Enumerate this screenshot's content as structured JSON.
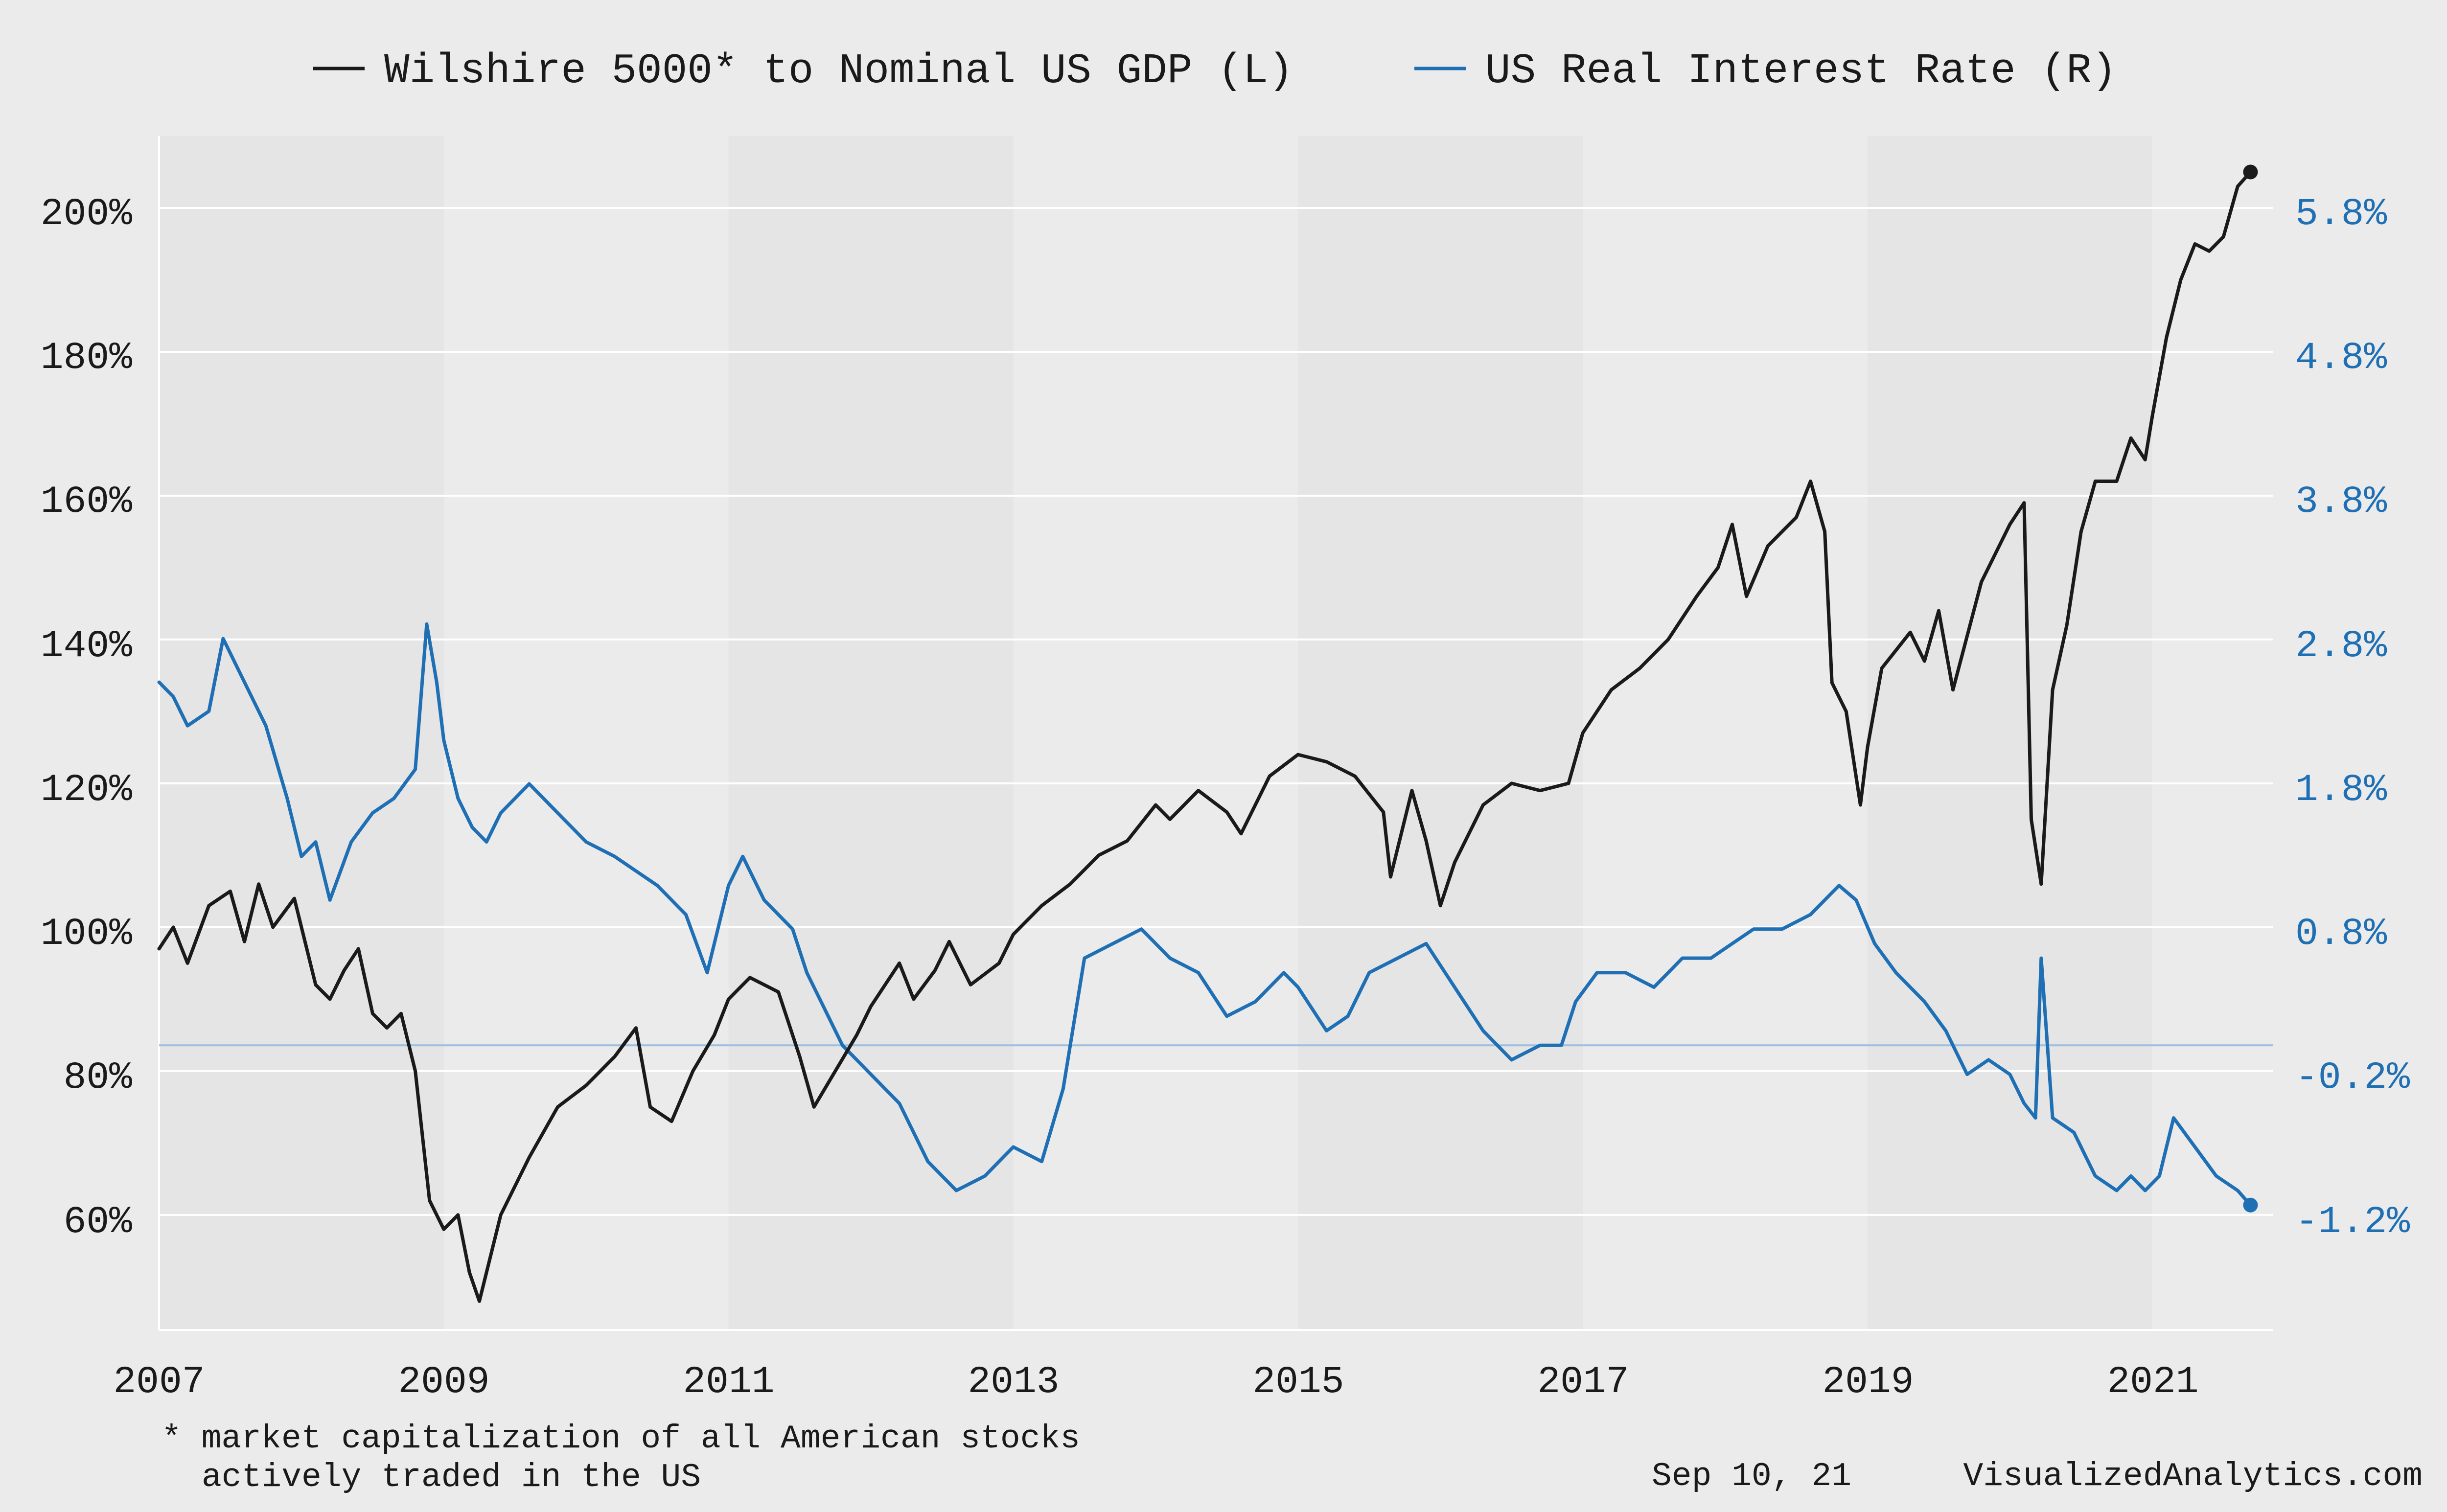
{
  "chart_data": {
    "type": "line",
    "legend": {
      "placement": "top-center",
      "entries": [
        "Wilshire 5000* to Nominal US GDP (L)",
        "US Real Interest Rate (R)"
      ]
    },
    "colors": {
      "wilshire": "#1a1a1a",
      "real_rate": "#1f6fb5",
      "background": "#ebebeb",
      "plot_bg": "#e5e5e5",
      "plot_band": "#ebebeb",
      "grid": "#ffffff",
      "zero_line": "#9dbfe0"
    },
    "x_axis": {
      "ticks": [
        "2007",
        "2009",
        "2011",
        "2013",
        "2015",
        "2017",
        "2019",
        "2021"
      ],
      "range": [
        2007.0,
        2021.85
      ]
    },
    "y_left": {
      "ticks": [
        "60%",
        "80%",
        "100%",
        "120%",
        "140%",
        "160%",
        "180%",
        "200%"
      ],
      "tick_values": [
        60,
        80,
        100,
        120,
        140,
        160,
        180,
        200
      ],
      "range": [
        44,
        210
      ]
    },
    "y_right": {
      "ticks": [
        "-1.2%",
        "-0.2%",
        "0.8%",
        "1.8%",
        "2.8%",
        "3.8%",
        "4.8%",
        "5.8%"
      ],
      "tick_values": [
        -1.2,
        -0.2,
        0.8,
        1.8,
        2.8,
        3.8,
        4.8,
        5.8
      ],
      "range": [
        -1.96,
        6.26
      ],
      "zero_line": 0.0
    },
    "grid": true,
    "series": [
      {
        "name": "Wilshire 5000* to Nominal US GDP (L)",
        "axis": "left",
        "x": [
          2007.0,
          2007.1,
          2007.2,
          2007.35,
          2007.5,
          2007.6,
          2007.7,
          2007.8,
          2007.95,
          2008.1,
          2008.2,
          2008.3,
          2008.4,
          2008.5,
          2008.6,
          2008.7,
          2008.8,
          2008.9,
          2009.0,
          2009.1,
          2009.18,
          2009.25,
          2009.4,
          2009.6,
          2009.8,
          2010.0,
          2010.2,
          2010.35,
          2010.45,
          2010.6,
          2010.75,
          2010.9,
          2011.0,
          2011.15,
          2011.35,
          2011.5,
          2011.6,
          2011.75,
          2011.9,
          2012.0,
          2012.2,
          2012.3,
          2012.45,
          2012.55,
          2012.7,
          2012.9,
          2013.0,
          2013.2,
          2013.4,
          2013.6,
          2013.8,
          2014.0,
          2014.1,
          2014.3,
          2014.5,
          2014.6,
          2014.8,
          2015.0,
          2015.2,
          2015.4,
          2015.6,
          2015.65,
          2015.8,
          2015.9,
          2016.0,
          2016.1,
          2016.3,
          2016.5,
          2016.7,
          2016.9,
          2017.0,
          2017.2,
          2017.4,
          2017.6,
          2017.8,
          2017.95,
          2018.05,
          2018.15,
          2018.3,
          2018.5,
          2018.6,
          2018.7,
          2018.75,
          2018.85,
          2018.95,
          2019.0,
          2019.1,
          2019.3,
          2019.4,
          2019.5,
          2019.6,
          2019.8,
          2019.9,
          2020.0,
          2020.1,
          2020.15,
          2020.22,
          2020.3,
          2020.4,
          2020.5,
          2020.6,
          2020.75,
          2020.85,
          2020.95,
          2021.0,
          2021.1,
          2021.2,
          2021.3,
          2021.4,
          2021.5,
          2021.6,
          2021.69
        ],
        "y": [
          97,
          100,
          95,
          103,
          105,
          98,
          106,
          100,
          104,
          92,
          90,
          94,
          97,
          88,
          86,
          88,
          80,
          62,
          58,
          60,
          52,
          48,
          60,
          68,
          75,
          78,
          82,
          86,
          75,
          73,
          80,
          85,
          90,
          93,
          91,
          82,
          75,
          80,
          85,
          89,
          95,
          90,
          94,
          98,
          92,
          95,
          99,
          103,
          106,
          110,
          112,
          117,
          115,
          119,
          116,
          113,
          121,
          124,
          123,
          121,
          116,
          107,
          119,
          112,
          103,
          109,
          117,
          120,
          119,
          120,
          127,
          133,
          136,
          140,
          146,
          150,
          156,
          146,
          153,
          157,
          162,
          155,
          134,
          130,
          117,
          125,
          136,
          141,
          137,
          144,
          133,
          148,
          152,
          156,
          159,
          115,
          106,
          133,
          142,
          155,
          162,
          162,
          168,
          165,
          171,
          182,
          190,
          195,
          194,
          196,
          203,
          205
        ]
      },
      {
        "name": "US Real Interest Rate (R)",
        "axis": "right",
        "x": [
          2007.0,
          2007.1,
          2007.2,
          2007.35,
          2007.45,
          2007.6,
          2007.75,
          2007.9,
          2008.0,
          2008.1,
          2008.2,
          2008.35,
          2008.5,
          2008.65,
          2008.8,
          2008.88,
          2008.95,
          2009.0,
          2009.1,
          2009.2,
          2009.3,
          2009.4,
          2009.6,
          2009.8,
          2010.0,
          2010.2,
          2010.35,
          2010.5,
          2010.7,
          2010.85,
          2011.0,
          2011.1,
          2011.25,
          2011.45,
          2011.55,
          2011.65,
          2011.8,
          2012.0,
          2012.2,
          2012.4,
          2012.6,
          2012.8,
          2013.0,
          2013.2,
          2013.35,
          2013.5,
          2013.7,
          2013.9,
          2014.1,
          2014.3,
          2014.5,
          2014.7,
          2014.9,
          2015.0,
          2015.2,
          2015.35,
          2015.5,
          2015.7,
          2015.9,
          2016.1,
          2016.3,
          2016.5,
          2016.7,
          2016.85,
          2016.95,
          2017.1,
          2017.3,
          2017.5,
          2017.7,
          2017.9,
          2018.05,
          2018.2,
          2018.4,
          2018.6,
          2018.8,
          2018.92,
          2019.05,
          2019.2,
          2019.4,
          2019.55,
          2019.7,
          2019.85,
          2020.0,
          2020.1,
          2020.18,
          2020.22,
          2020.3,
          2020.45,
          2020.6,
          2020.75,
          2020.85,
          2020.95,
          2021.05,
          2021.15,
          2021.3,
          2021.45,
          2021.6,
          2021.69
        ],
        "y": [
          2.5,
          2.4,
          2.2,
          2.3,
          2.8,
          2.5,
          2.2,
          1.7,
          1.3,
          1.4,
          1.0,
          1.4,
          1.6,
          1.7,
          1.9,
          2.9,
          2.5,
          2.1,
          1.7,
          1.5,
          1.4,
          1.6,
          1.8,
          1.6,
          1.4,
          1.3,
          1.2,
          1.1,
          0.9,
          0.5,
          1.1,
          1.3,
          1.0,
          0.8,
          0.5,
          0.3,
          0.0,
          -0.2,
          -0.4,
          -0.8,
          -1.0,
          -0.9,
          -0.7,
          -0.8,
          -0.3,
          0.6,
          0.7,
          0.8,
          0.6,
          0.5,
          0.2,
          0.3,
          0.5,
          0.4,
          0.1,
          0.2,
          0.5,
          0.6,
          0.7,
          0.4,
          0.1,
          -0.1,
          0.0,
          0.0,
          0.3,
          0.5,
          0.5,
          0.4,
          0.6,
          0.6,
          0.7,
          0.8,
          0.8,
          0.9,
          1.1,
          1.0,
          0.7,
          0.5,
          0.3,
          0.1,
          -0.2,
          -0.1,
          -0.2,
          -0.4,
          -0.5,
          0.6,
          -0.5,
          -0.6,
          -0.9,
          -1.0,
          -0.9,
          -1.0,
          -0.9,
          -0.5,
          -0.7,
          -0.9,
          -1.0,
          -1.1
        ]
      }
    ],
    "markers": {
      "wilshire_last": {
        "x": 2021.69,
        "y": 205
      },
      "real_rate_last": {
        "x": 2021.69,
        "y": -1.1
      }
    },
    "footnote": [
      "* market capitalization of all American stocks",
      "actively traded in the US"
    ],
    "date_label": "Sep 10, 21",
    "source": "VisualizedAnalytics.com"
  }
}
